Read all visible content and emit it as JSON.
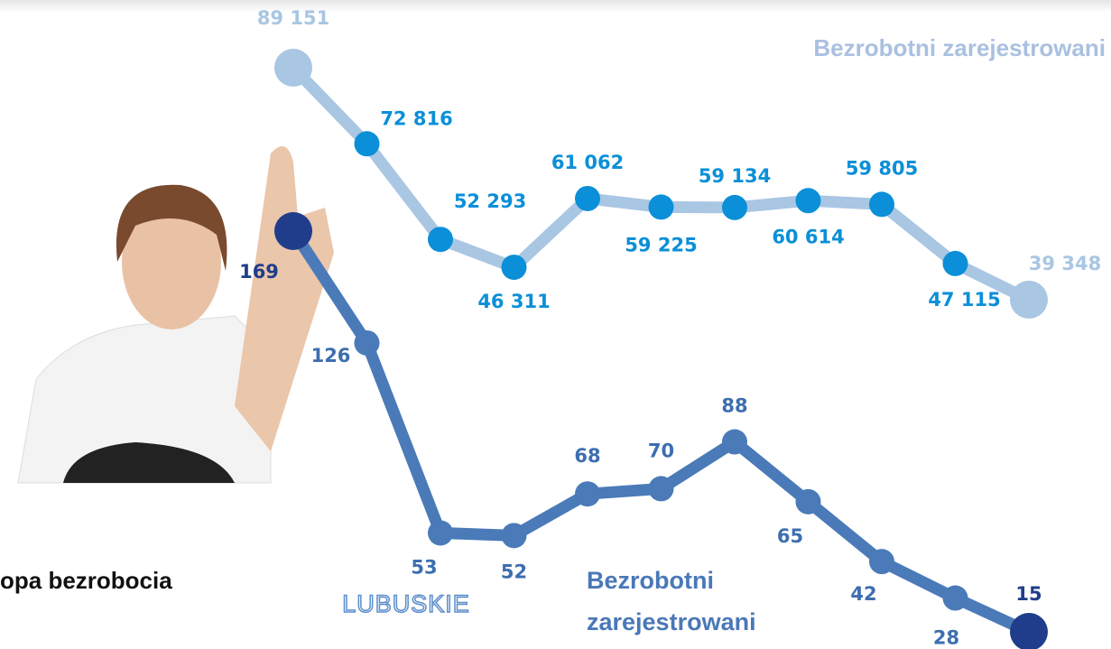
{
  "chart_data": {
    "type": "line",
    "title": "opa bezrobocia",
    "region": "LUBUSKIE",
    "series": [
      {
        "name": "Bezrobotni zarejestrowani",
        "color": "#a9c6e3",
        "marker_color": "#0b8fd8",
        "end_color": "#a9c6e3",
        "values": [
          89151,
          72816,
          52293,
          46311,
          61062,
          59225,
          59134,
          60614,
          59805,
          47115,
          39348
        ],
        "value_labels": [
          "89 151",
          "72 816",
          "52 293",
          "46 311",
          "61 062",
          "59 225",
          "59 134",
          "60 614",
          "59 805",
          "47 115",
          "39 348"
        ]
      },
      {
        "name": "Bezrobotni zarejestrowani",
        "color": "#4a7ab8",
        "marker_color": "#4a7ab8",
        "end_color": "#1f3d8a",
        "values": [
          169,
          126,
          53,
          52,
          68,
          70,
          88,
          65,
          42,
          28,
          15
        ]
      }
    ]
  }
}
